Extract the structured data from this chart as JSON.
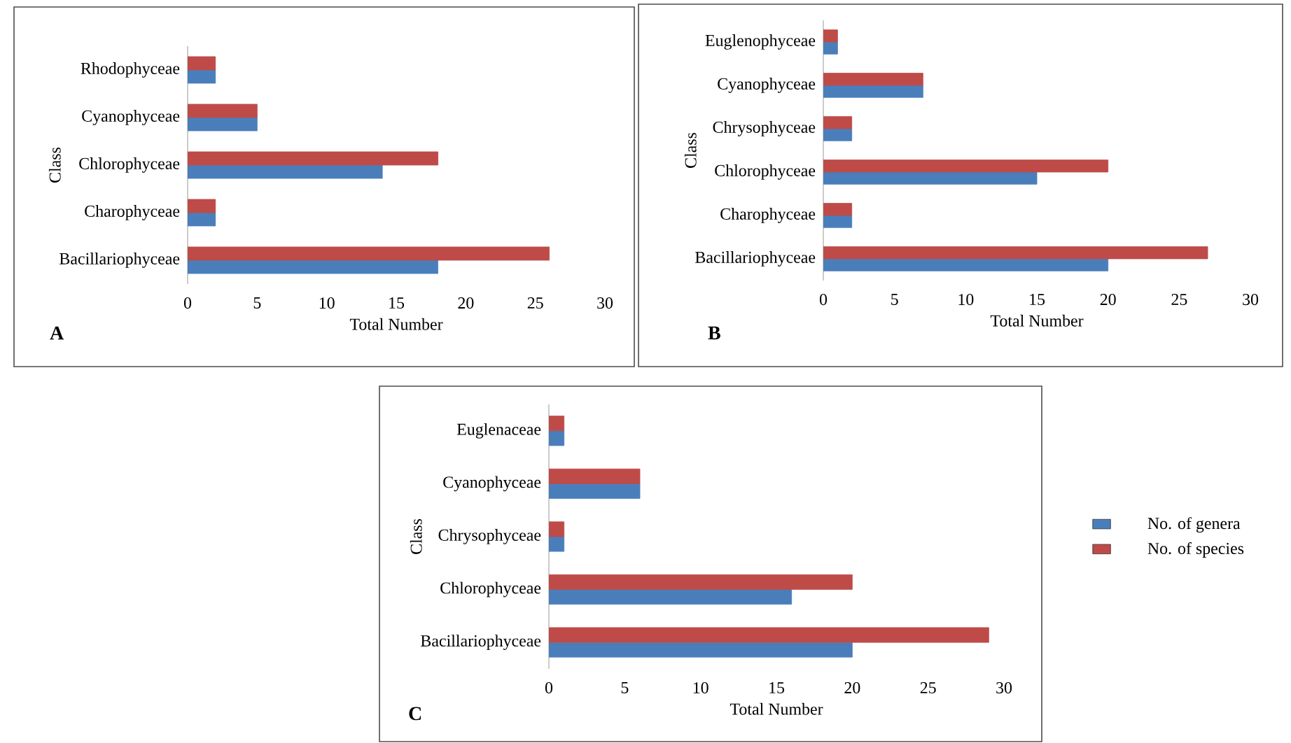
{
  "chart_data": [
    {
      "type": "bar",
      "orientation": "horizontal",
      "xlabel": "Total Number",
      "ylabel": "Class",
      "annotations": [
        "A"
      ],
      "categories": [
        "Rhodophyceae",
        "Cyanophyceae",
        "Chlorophyceae",
        "Charophyceae",
        "Bacillariophyceae"
      ],
      "series": [
        {
          "color": "#4a7ebb",
          "values": [
            2,
            5,
            14,
            2,
            18
          ]
        },
        {
          "color": "#be4b48",
          "values": [
            2,
            5,
            18,
            2,
            26
          ]
        }
      ],
      "xlim": [
        0,
        30
      ],
      "xticks": [
        0,
        5,
        10,
        15,
        20,
        25,
        30
      ]
    },
    {
      "type": "bar",
      "orientation": "horizontal",
      "xlabel": "Total Number",
      "ylabel": "Class",
      "annotations": [
        "B"
      ],
      "categories": [
        "Euglenophyceae",
        "Cyanophyceae",
        "Chrysophyceae",
        "Chlorophyceae",
        "Charophyceae",
        "Bacillariophyceae"
      ],
      "series": [
        {
          "color": "#4a7ebb",
          "values": [
            1,
            7,
            2,
            15,
            2,
            20
          ]
        },
        {
          "color": "#be4b48",
          "values": [
            1,
            7,
            2,
            20,
            2,
            27
          ]
        }
      ],
      "xlim": [
        0,
        30
      ],
      "xticks": [
        0,
        5,
        10,
        15,
        20,
        25,
        30
      ]
    },
    {
      "type": "bar",
      "orientation": "horizontal",
      "xlabel": "Total Number",
      "ylabel": "Class",
      "annotations": [
        "C"
      ],
      "categories": [
        "Euglenaceae",
        "Cyanophyceae",
        "Chrysophyceae",
        "Chlorophyceae",
        "Bacillariophyceae"
      ],
      "series": [
        {
          "name": "No. of genera",
          "color": "#4a7ebb",
          "values": [
            1,
            6,
            1,
            16,
            20
          ]
        },
        {
          "name": "No. of species",
          "color": "#be4b48",
          "values": [
            1,
            6,
            1,
            20,
            29
          ]
        }
      ],
      "xlim": [
        0,
        30
      ],
      "xticks": [
        0,
        5,
        10,
        15,
        20,
        25,
        30
      ],
      "legend": "right"
    }
  ]
}
